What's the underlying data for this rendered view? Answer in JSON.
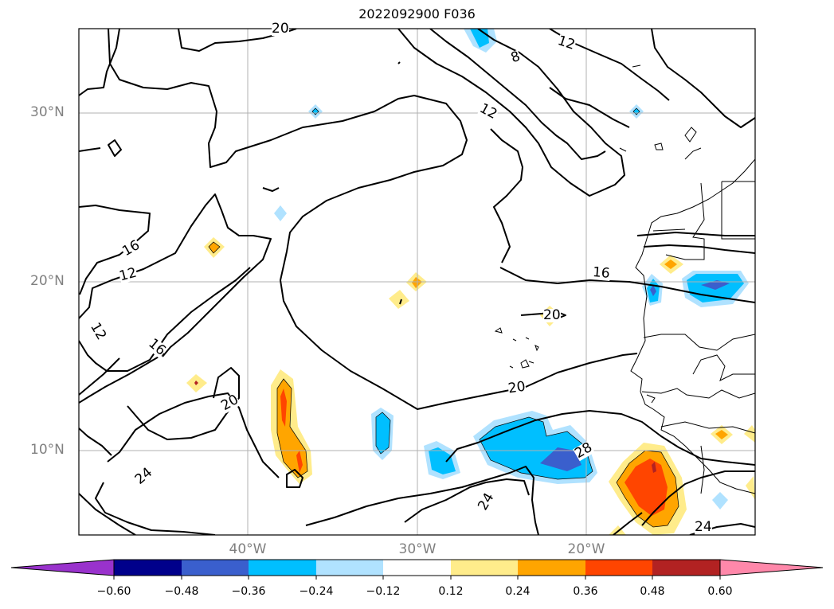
{
  "title": "2022092900 F036",
  "lat_labels": [
    "30°N",
    "20°N",
    "10°N"
  ],
  "lon_labels": [
    "40°W",
    "30°W",
    "20°W"
  ],
  "contour_labels": [
    "20",
    "12",
    "8",
    "12",
    "16",
    "12",
    "12",
    "16",
    "16",
    "20",
    "20",
    "20",
    "24",
    "24",
    "28",
    "24"
  ],
  "colorbar": {
    "ticks": [
      "−0.60",
      "−0.48",
      "−0.36",
      "−0.24",
      "−0.12",
      "0.12",
      "0.24",
      "0.36",
      "0.48",
      "0.60"
    ],
    "colors": [
      "#9932cc",
      "#00008b",
      "#3a5fcd",
      "#00bfff",
      "#b0e2ff",
      "#ffffff",
      "#ffec8b",
      "#ffa500",
      "#ff4500",
      "#b22222",
      "#ff88aa"
    ]
  }
}
